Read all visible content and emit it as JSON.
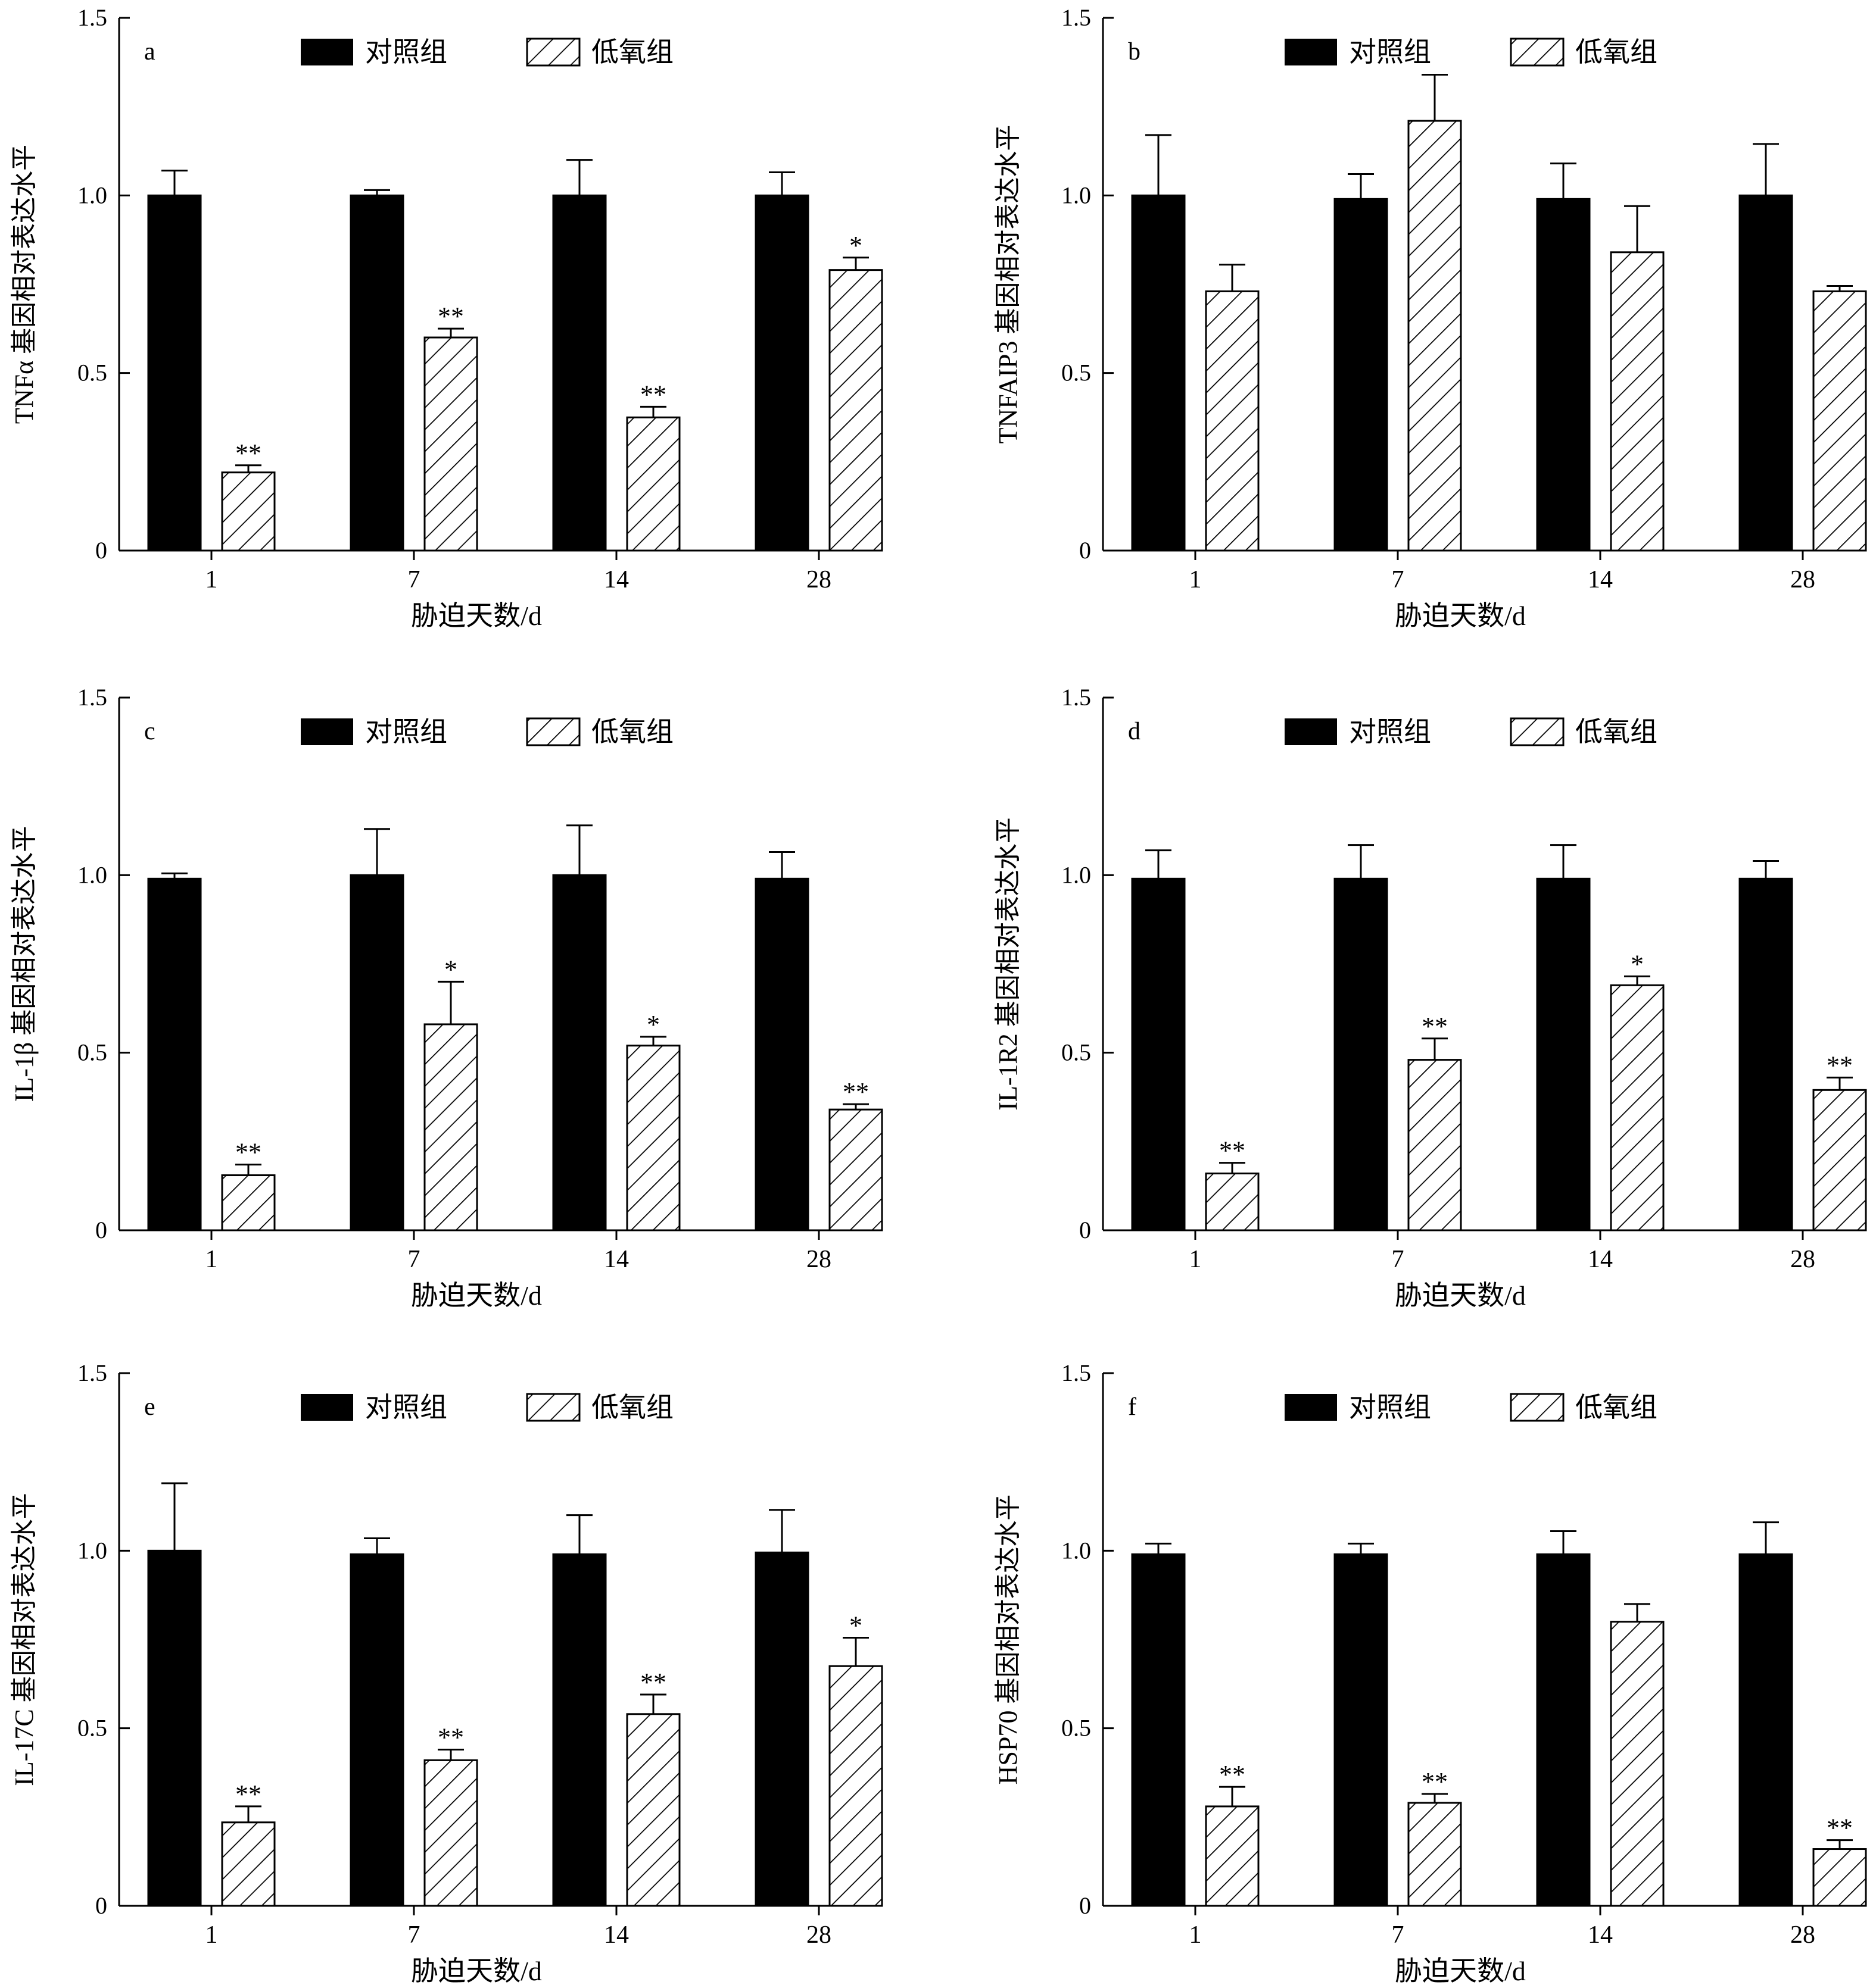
{
  "figure": {
    "legend_labels": [
      "对照组",
      "低氧组"
    ],
    "colors": {
      "control": "#000000",
      "hypoxia_fill": "#ffffff",
      "axis": "#000000"
    }
  },
  "chart_data": [
    {
      "type": "bar",
      "panel_label": "a",
      "ylabel": "TNFα 基因相对表达水平",
      "xlabel": "胁迫天数/d",
      "categories": [
        "1",
        "7",
        "14",
        "28"
      ],
      "ylim": [
        0,
        1.5
      ],
      "yticks": [
        "0",
        "0.5",
        "1.0",
        "1.5"
      ],
      "legend_position": "top",
      "series": [
        {
          "name": "对照组",
          "values": [
            1.0,
            1.0,
            1.0,
            1.0
          ],
          "errors": [
            0.07,
            0.015,
            0.1,
            0.065
          ],
          "sig": [
            "",
            "",
            "",
            ""
          ]
        },
        {
          "name": "低氧组",
          "values": [
            0.22,
            0.6,
            0.375,
            0.79
          ],
          "errors": [
            0.02,
            0.025,
            0.03,
            0.035
          ],
          "sig": [
            "**",
            "**",
            "**",
            "*"
          ]
        }
      ]
    },
    {
      "type": "bar",
      "panel_label": "b",
      "ylabel": "TNFAIP3 基因相对表达水平",
      "xlabel": "胁迫天数/d",
      "categories": [
        "1",
        "7",
        "14",
        "28"
      ],
      "ylim": [
        0,
        1.5
      ],
      "yticks": [
        "0",
        "0.5",
        "1.0",
        "1.5"
      ],
      "legend_position": "top",
      "series": [
        {
          "name": "对照组",
          "values": [
            1.0,
            0.99,
            0.99,
            1.0
          ],
          "errors": [
            0.17,
            0.07,
            0.1,
            0.145
          ],
          "sig": [
            "",
            "",
            "",
            ""
          ]
        },
        {
          "name": "低氧组",
          "values": [
            0.73,
            1.21,
            0.84,
            0.73
          ],
          "errors": [
            0.075,
            0.13,
            0.13,
            0.015
          ],
          "sig": [
            "",
            "",
            "",
            ""
          ]
        }
      ]
    },
    {
      "type": "bar",
      "panel_label": "c",
      "ylabel": "IL-1β 基因相对表达水平",
      "xlabel": "胁迫天数/d",
      "categories": [
        "1",
        "7",
        "14",
        "28"
      ],
      "ylim": [
        0,
        1.5
      ],
      "yticks": [
        "0",
        "0.5",
        "1.0",
        "1.5"
      ],
      "legend_position": "top",
      "series": [
        {
          "name": "对照组",
          "values": [
            0.99,
            1.0,
            1.0,
            0.99
          ],
          "errors": [
            0.015,
            0.13,
            0.14,
            0.075
          ],
          "sig": [
            "",
            "",
            "",
            ""
          ]
        },
        {
          "name": "低氧组",
          "values": [
            0.155,
            0.58,
            0.52,
            0.34
          ],
          "errors": [
            0.03,
            0.12,
            0.025,
            0.015
          ],
          "sig": [
            "**",
            "*",
            "*",
            "**"
          ]
        }
      ]
    },
    {
      "type": "bar",
      "panel_label": "d",
      "ylabel": "IL-1R2 基因相对表达水平",
      "xlabel": "胁迫天数/d",
      "categories": [
        "1",
        "7",
        "14",
        "28"
      ],
      "ylim": [
        0,
        1.5
      ],
      "yticks": [
        "0",
        "0.5",
        "1.0",
        "1.5"
      ],
      "legend_position": "top",
      "series": [
        {
          "name": "对照组",
          "values": [
            0.99,
            0.99,
            0.99,
            0.99
          ],
          "errors": [
            0.08,
            0.095,
            0.095,
            0.05
          ],
          "sig": [
            "",
            "",
            "",
            ""
          ]
        },
        {
          "name": "低氧组",
          "values": [
            0.16,
            0.48,
            0.69,
            0.395
          ],
          "errors": [
            0.03,
            0.06,
            0.025,
            0.035
          ],
          "sig": [
            "**",
            "**",
            "*",
            "**"
          ]
        }
      ]
    },
    {
      "type": "bar",
      "panel_label": "e",
      "ylabel": "IL-17C 基因相对表达水平",
      "xlabel": "胁迫天数/d",
      "categories": [
        "1",
        "7",
        "14",
        "28"
      ],
      "ylim": [
        0,
        1.5
      ],
      "yticks": [
        "0",
        "0.5",
        "1.0",
        "1.5"
      ],
      "legend_position": "top",
      "series": [
        {
          "name": "对照组",
          "values": [
            1.0,
            0.99,
            0.99,
            0.995
          ],
          "errors": [
            0.19,
            0.045,
            0.11,
            0.12
          ],
          "sig": [
            "",
            "",
            "",
            ""
          ]
        },
        {
          "name": "低氧组",
          "values": [
            0.235,
            0.41,
            0.54,
            0.675
          ],
          "errors": [
            0.045,
            0.03,
            0.055,
            0.08
          ],
          "sig": [
            "**",
            "**",
            "**",
            "*"
          ]
        }
      ]
    },
    {
      "type": "bar",
      "panel_label": "f",
      "ylabel": "HSP70 基因相对表达水平",
      "xlabel": "胁迫天数/d",
      "categories": [
        "1",
        "7",
        "14",
        "28"
      ],
      "ylim": [
        0,
        1.5
      ],
      "yticks": [
        "0",
        "0.5",
        "1.0",
        "1.5"
      ],
      "legend_position": "top",
      "series": [
        {
          "name": "对照组",
          "values": [
            0.99,
            0.99,
            0.99,
            0.99
          ],
          "errors": [
            0.03,
            0.03,
            0.065,
            0.09
          ],
          "sig": [
            "",
            "",
            "",
            ""
          ]
        },
        {
          "name": "低氧组",
          "values": [
            0.28,
            0.29,
            0.8,
            0.16
          ],
          "errors": [
            0.055,
            0.025,
            0.05,
            0.025
          ],
          "sig": [
            "**",
            "**",
            "",
            "**"
          ]
        }
      ]
    }
  ]
}
